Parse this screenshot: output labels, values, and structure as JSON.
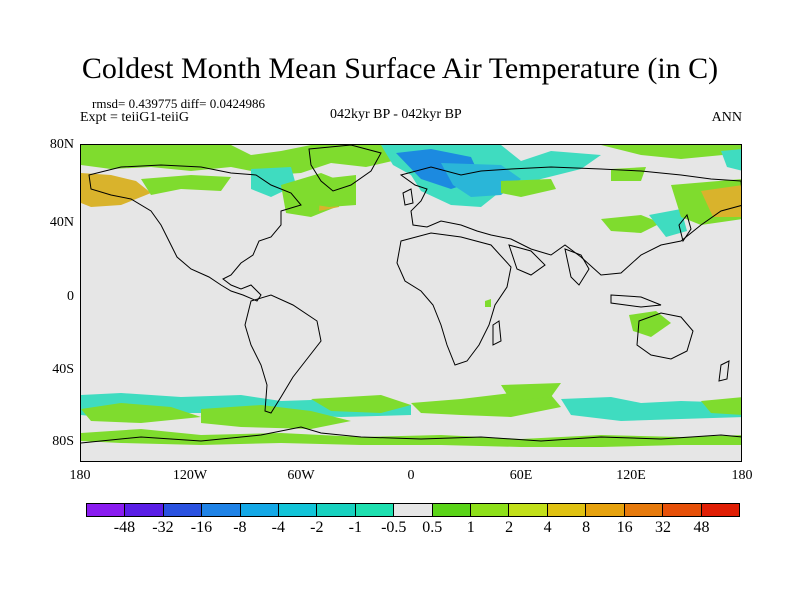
{
  "title": "Coldest Month Mean Surface Air Temperature (in C)",
  "stats": "rmsd= 0.439775 diff= 0.0424986",
  "experiment": "Expt = teiiG1-teiiG",
  "center_label": "042kyr BP - 042kyr BP",
  "period": "ANN",
  "lat_labels": [
    "80N",
    "40N",
    "0",
    "40S",
    "80S"
  ],
  "lon_labels": [
    "180",
    "120W",
    "60W",
    "0",
    "60E",
    "120E",
    "180"
  ],
  "colorbar": {
    "labels": [
      "-48",
      "-32",
      "-16",
      "-8",
      "-4",
      "-2",
      "-1",
      "-0.5",
      "0.5",
      "1",
      "2",
      "4",
      "8",
      "16",
      "32",
      "48"
    ],
    "colors": [
      "#8a1cf0",
      "#5a1ee6",
      "#2a52e0",
      "#1e82e6",
      "#14a8e6",
      "#12c4d8",
      "#18d2c0",
      "#1ee0b0",
      "#e6e6e6",
      "#5ad418",
      "#8ee01a",
      "#c2e01a",
      "#e0c212",
      "#e6a20e",
      "#e67a0c",
      "#e65008",
      "#e01e04"
    ]
  },
  "regions": {
    "positive": "#7fdc2e",
    "strong_positive": "#b8d93a",
    "warmest": "#d9b32c",
    "negative": "#3fdcc0",
    "strong_negative": "#2ab6d8",
    "coldest": "#1c8ae0"
  }
}
